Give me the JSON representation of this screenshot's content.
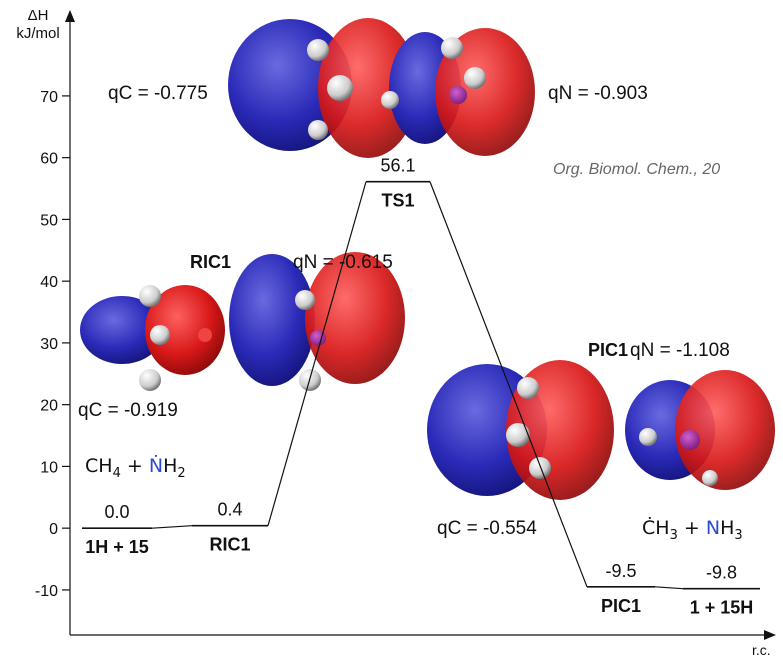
{
  "chart_data": {
    "type": "energy-diagram",
    "y_label_top": "ΔH",
    "y_label_unit": "kJ/mol",
    "x_label": "r.c.",
    "categories": [
      "1H + 15",
      "RIC1",
      "TS1",
      "PIC1",
      "1 + 15H"
    ],
    "values": [
      0.0,
      0.4,
      56.1,
      -9.5,
      -9.8
    ],
    "value_labels": [
      "0.0",
      "0.4",
      "56.1",
      "-9.5",
      "-9.8"
    ],
    "ylim": [
      -17.3,
      83.1
    ],
    "yticks": [
      -10,
      0,
      10,
      20,
      30,
      40,
      50,
      60,
      70
    ],
    "annotations": [
      "qC = -0.775",
      "qN = -0.903",
      "RIC1",
      "qN = -0.615",
      "qC = -0.919",
      "PIC1",
      "qN = -1.108",
      "qC = -0.554"
    ],
    "citation": "Org. Biomol. Chem., 20",
    "formulas": [
      [
        "CH",
        "4",
        " + ",
        "Ṅ",
        "H",
        "2"
      ],
      [
        "Ċ",
        "H",
        "3",
        " + ",
        "N",
        "H",
        "3"
      ]
    ]
  }
}
